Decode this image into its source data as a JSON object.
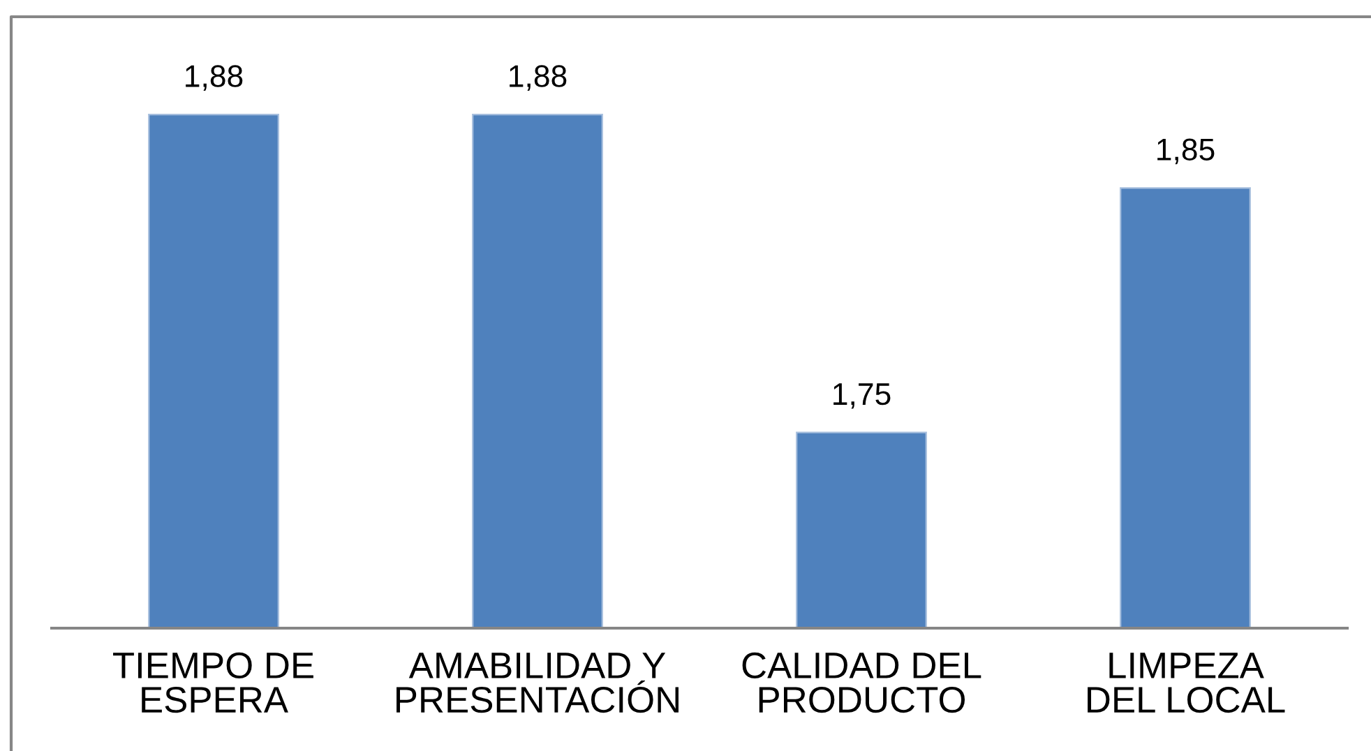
{
  "chart_data": {
    "type": "bar",
    "categories": [
      "TIEMPO DE\nESPERA",
      "AMABILIDAD Y\nPRESENTACIÓN",
      "CALIDAD DEL\nPRODUCTO",
      "LIMPEZA\nDEL LOCAL"
    ],
    "values": [
      1.88,
      1.88,
      1.75,
      1.85
    ],
    "value_labels": [
      "1,88",
      "1,88",
      "1,75",
      "1,85"
    ],
    "color": "#4f81bd",
    "ylim": [
      1.67,
      1.92
    ],
    "tick_labels": "x"
  }
}
